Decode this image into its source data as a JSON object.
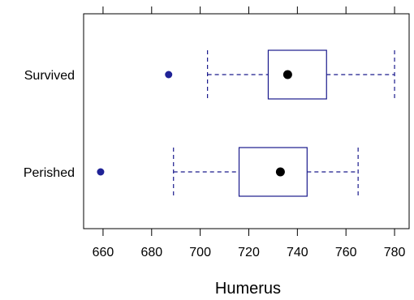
{
  "chart_data": {
    "type": "boxplot",
    "title": "",
    "xlabel": "Humerus",
    "ylabel": "",
    "xlim": [
      652,
      786
    ],
    "x_ticks": [
      660,
      680,
      700,
      720,
      740,
      760,
      780
    ],
    "x_tick_labels": [
      "660",
      "680",
      "700",
      "720",
      "740",
      "760",
      "780"
    ],
    "grid": false,
    "categories": [
      "Survived",
      "Perished"
    ],
    "boxes": [
      {
        "category": "Survived",
        "whisker_low": 703,
        "q1": 728,
        "median": 736,
        "q3": 752,
        "whisker_high": 780,
        "outliers": [
          687
        ]
      },
      {
        "category": "Perished",
        "whisker_low": 689,
        "q1": 716,
        "median": 733,
        "q3": 744,
        "whisker_high": 765,
        "outliers": [
          659
        ]
      }
    ],
    "colors": {
      "box_outline": "#1a1a8c",
      "whisker": "#1a1a8c",
      "outlier": "#1f2296",
      "median_dot": "#000000",
      "frame": "#000000"
    }
  }
}
